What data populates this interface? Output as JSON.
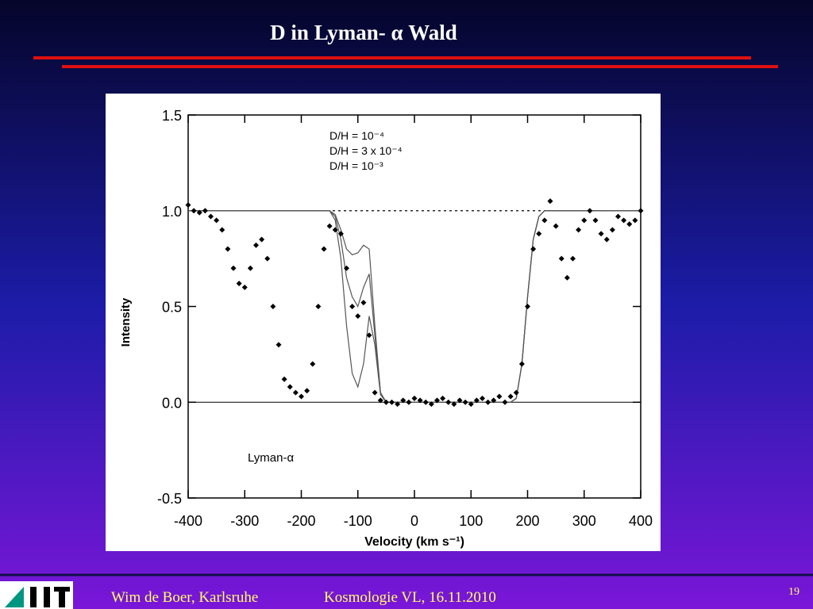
{
  "slide": {
    "title": "D in Lyman- α  Wald",
    "footer_author": "Wim de Boer, Karlsruhe",
    "footer_course": "Kosmologie VL,  16.11.2010",
    "page": "19"
  },
  "chart_data": {
    "type": "scatter",
    "xlabel": "Velocity (km s⁻¹)",
    "ylabel": "Intensity",
    "annotation": "Lyman-α",
    "xlim": [
      -400,
      400
    ],
    "xticks": [
      -400,
      -300,
      -200,
      -100,
      0,
      100,
      200,
      300,
      400
    ],
    "ylim": [
      -0.5,
      1.5
    ],
    "yticks": [
      -0.5,
      {
        "value": 0,
        "label": "0.0"
      },
      0.5,
      {
        "value": 1,
        "label": "1.0"
      },
      1.5
    ],
    "reference_line": 1.0,
    "color": "#000000",
    "x": [
      -400,
      -390,
      -380,
      -370,
      -360,
      -350,
      -340,
      -330,
      -320,
      -310,
      -300,
      -290,
      -280,
      -270,
      -260,
      -250,
      -240,
      -230,
      -220,
      -210,
      -200,
      -190,
      -180,
      -170,
      -160,
      -150,
      -140,
      -130,
      -120,
      -110,
      -100,
      -90,
      -80,
      -70,
      -60,
      -50,
      -40,
      -30,
      -20,
      -10,
      0,
      10,
      20,
      30,
      40,
      50,
      60,
      70,
      80,
      90,
      100,
      110,
      120,
      130,
      140,
      150,
      160,
      170,
      180,
      190,
      200,
      210,
      220,
      230,
      240,
      250,
      260,
      270,
      280,
      290,
      300,
      310,
      320,
      330,
      340,
      350,
      360,
      370,
      380,
      390,
      400
    ],
    "values": [
      1.03,
      1.0,
      0.99,
      1.0,
      0.97,
      0.95,
      0.9,
      0.8,
      0.7,
      0.62,
      0.6,
      0.7,
      0.82,
      0.85,
      0.75,
      0.5,
      0.3,
      0.12,
      0.08,
      0.05,
      0.03,
      0.06,
      0.2,
      0.5,
      0.8,
      0.92,
      0.9,
      0.88,
      0.7,
      0.5,
      0.45,
      0.52,
      0.35,
      0.05,
      0.01,
      0.0,
      0.0,
      -0.01,
      0.01,
      0.0,
      0.02,
      0.01,
      0.0,
      -0.01,
      0.01,
      0.02,
      0.0,
      -0.01,
      0.01,
      0.0,
      -0.01,
      0.01,
      0.02,
      0.0,
      0.01,
      0.03,
      0.0,
      0.03,
      0.05,
      0.2,
      0.5,
      0.8,
      0.88,
      0.95,
      1.05,
      0.92,
      0.75,
      0.65,
      0.75,
      0.9,
      0.95,
      1.0,
      0.95,
      0.88,
      0.85,
      0.9,
      0.97,
      0.95,
      0.93,
      0.95,
      1.0
    ],
    "series": [
      {
        "name": "D/H = 10⁻⁴",
        "color": "#555555",
        "x": [
          -400,
          -150,
          -140,
          -130,
          -120,
          -110,
          -100,
          -90,
          -80,
          -70,
          -60,
          -50,
          170,
          180,
          190,
          200,
          210,
          220,
          230,
          400
        ],
        "values": [
          1,
          1,
          0.98,
          0.9,
          0.8,
          0.77,
          0.78,
          0.82,
          0.8,
          0.4,
          0.05,
          0,
          0,
          0.02,
          0.2,
          0.55,
          0.85,
          0.97,
          1,
          1
        ]
      },
      {
        "name": "D/H = 3 x 10⁻⁴",
        "color": "#555555",
        "x": [
          -400,
          -150,
          -140,
          -130,
          -120,
          -110,
          -100,
          -90,
          -80,
          -70,
          -60,
          -50,
          170,
          180,
          190,
          200,
          210,
          220,
          230,
          400
        ],
        "values": [
          1,
          1,
          0.97,
          0.85,
          0.65,
          0.55,
          0.5,
          0.6,
          0.67,
          0.35,
          0.05,
          0,
          0,
          0.02,
          0.2,
          0.55,
          0.85,
          0.97,
          1,
          1
        ]
      },
      {
        "name": "D/H = 10⁻³",
        "color": "#555555",
        "x": [
          -400,
          -150,
          -140,
          -130,
          -120,
          -110,
          -100,
          -90,
          -80,
          -70,
          -60,
          -50,
          170,
          180,
          190,
          200,
          210,
          220,
          230,
          400
        ],
        "values": [
          1,
          1,
          0.95,
          0.75,
          0.4,
          0.15,
          0.08,
          0.2,
          0.45,
          0.3,
          0.04,
          0,
          0,
          0.02,
          0.2,
          0.55,
          0.85,
          0.97,
          1,
          1
        ]
      }
    ]
  }
}
